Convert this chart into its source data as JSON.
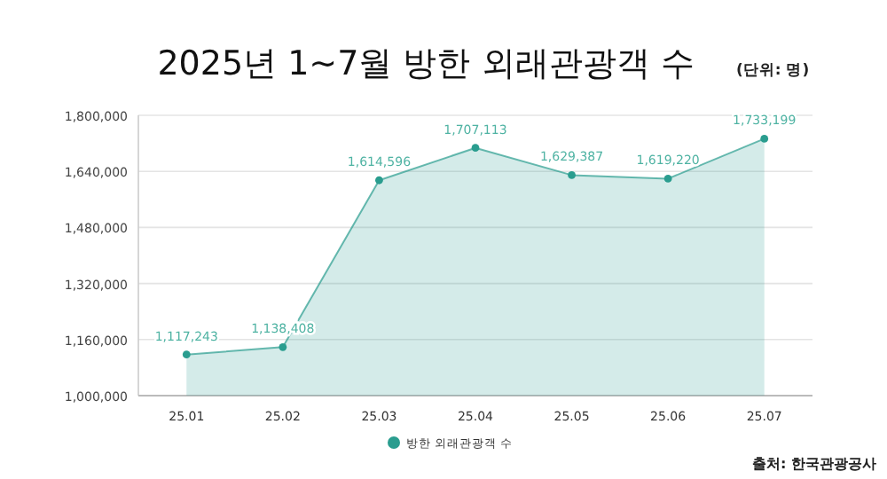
{
  "chart_data": {
    "type": "area",
    "title": "2025년 1~7월 방한 외래관광객 수",
    "subtitle": "(단위: 명)",
    "categories": [
      "25.01",
      "25.02",
      "25.03",
      "25.04",
      "25.05",
      "25.06",
      "25.07"
    ],
    "series": [
      {
        "name": "방한 외래관광객 수",
        "color": "#2a9d8f",
        "values": [
          1117243,
          1138408,
          1614596,
          1707113,
          1629387,
          1619220,
          1733199
        ],
        "value_labels": [
          "1,117,243",
          "1,138,408",
          "1,614,596",
          "1,707,113",
          "1,629,387",
          "1,619,220",
          "1,733,199"
        ]
      }
    ],
    "ylim": [
      1000000,
      1800000
    ],
    "yticks": [
      {
        "value": 1000000,
        "label": "1,000,000"
      },
      {
        "value": 1160000,
        "label": "1,160,000"
      },
      {
        "value": 1320000,
        "label": "1,320,000"
      },
      {
        "value": 1480000,
        "label": "1,480,000"
      },
      {
        "value": 1640000,
        "label": "1,640,000"
      },
      {
        "value": 1800000,
        "label": "1,800,000"
      }
    ],
    "grid": "y",
    "legend": "bottom",
    "marker": "circle",
    "annotations": [
      "출처: 한국관광공사"
    ]
  }
}
